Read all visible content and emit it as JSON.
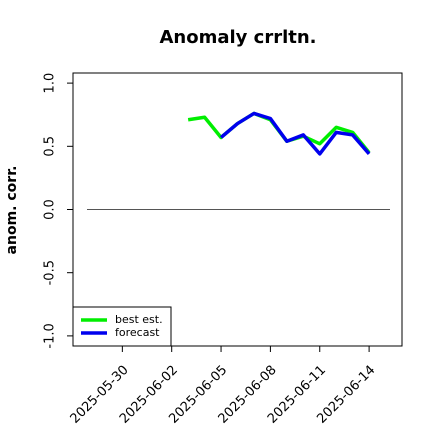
{
  "chart_data": {
    "type": "line",
    "title": "Anomaly crrltn.",
    "ylabel": "anom. corr.",
    "series": [
      {
        "name": "best est.",
        "color": "#00ee00",
        "x": [
          "2025-06-03",
          "2025-06-04",
          "2025-06-05",
          "2025-06-06",
          "2025-06-07",
          "2025-06-08",
          "2025-06-09",
          "2025-06-10",
          "2025-06-11",
          "2025-06-12",
          "2025-06-13",
          "2025-06-14"
        ],
        "values": [
          0.71,
          0.73,
          0.57,
          0.68,
          0.76,
          0.71,
          0.54,
          0.58,
          0.52,
          0.65,
          0.61,
          0.45
        ]
      },
      {
        "name": "forecast",
        "color": "#0000ee",
        "x": [
          "2025-06-05",
          "2025-06-06",
          "2025-06-07",
          "2025-06-08",
          "2025-06-09",
          "2025-06-10",
          "2025-06-11",
          "2025-06-12",
          "2025-06-13",
          "2025-06-14"
        ],
        "values": [
          0.57,
          0.68,
          0.76,
          0.72,
          0.54,
          0.59,
          0.44,
          0.61,
          0.59,
          0.44
        ]
      }
    ],
    "xlim": [
      "2025-05-27",
      "2025-06-16"
    ],
    "xticks": [
      "2025-05-30",
      "2025-06-02",
      "2025-06-05",
      "2025-06-08",
      "2025-06-11",
      "2025-06-14"
    ],
    "xtick_colors": [
      "#000000",
      "#000000",
      "#228b22",
      "#000000",
      "#000000",
      "#000000"
    ],
    "ylim": [
      -1.08,
      1.08
    ],
    "yticks": [
      {
        "value": -1,
        "label": "-1.0"
      },
      {
        "value": -0.5,
        "label": "-0.5"
      },
      {
        "value": 0,
        "label": "0.0"
      },
      {
        "value": 0.5,
        "label": "0.5"
      },
      {
        "value": 1,
        "label": "1.0"
      }
    ],
    "hline": 0,
    "legend": "bottomleft"
  }
}
